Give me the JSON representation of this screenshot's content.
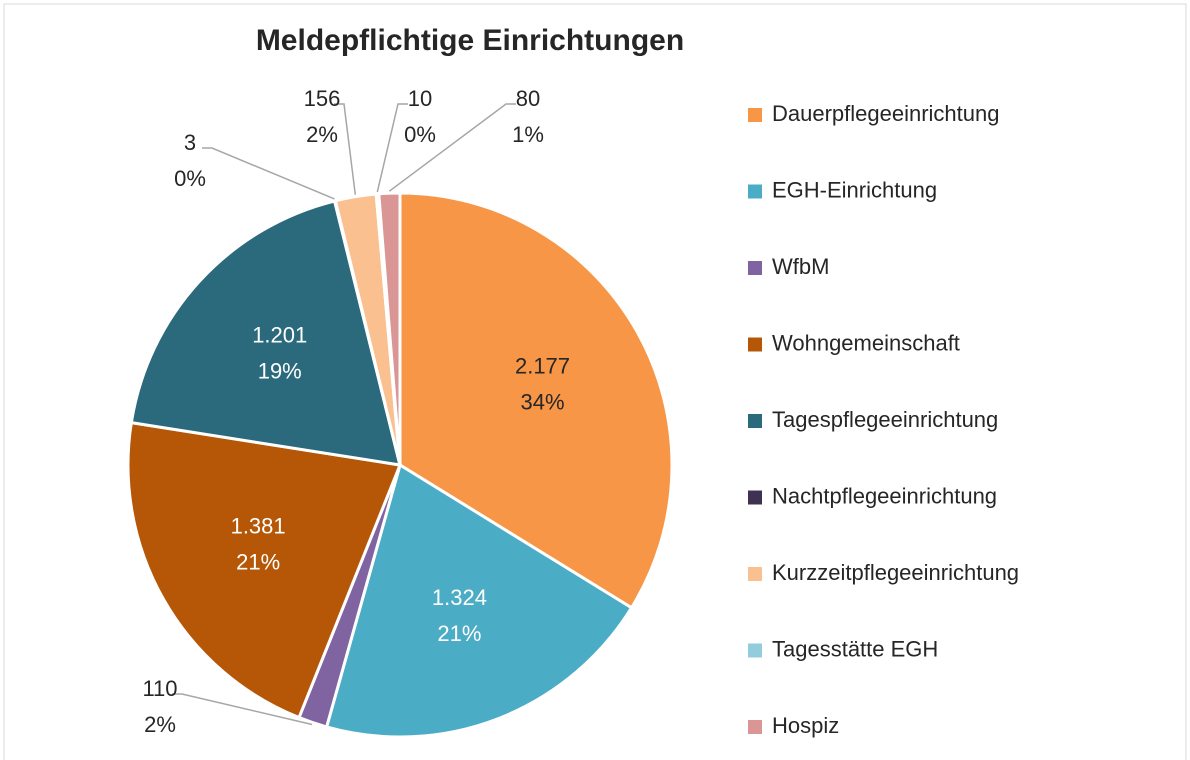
{
  "chart_data": {
    "type": "pie",
    "title": "Meldepflichtige Einrichtungen",
    "categories": [
      "Dauerpflegeeinrichtung",
      "EGH-Einrichtung",
      "WfbM",
      "Wohngemeinschaft",
      "Tagespflegeeinrichtung",
      "Nachtpflegeeinrichtung",
      "Kurzzeitpflegeeinrichtung",
      "Tagesstätte EGH",
      "Hospiz"
    ],
    "values": [
      2177,
      1324,
      110,
      1381,
      1201,
      3,
      156,
      10,
      80
    ],
    "value_labels": [
      "2.177",
      "1.324",
      "110",
      "1.381",
      "1.201",
      "3",
      "156",
      "10",
      "80"
    ],
    "percent_labels": [
      "34%",
      "21%",
      "2%",
      "21%",
      "19%",
      "0%",
      "2%",
      "0%",
      "1%"
    ],
    "colors": [
      "#f79646",
      "#4bacc6",
      "#8064a2",
      "#b65708",
      "#2b6a7c",
      "#3f3151",
      "#fac090",
      "#93cddd",
      "#d99694"
    ],
    "legend": "right"
  }
}
